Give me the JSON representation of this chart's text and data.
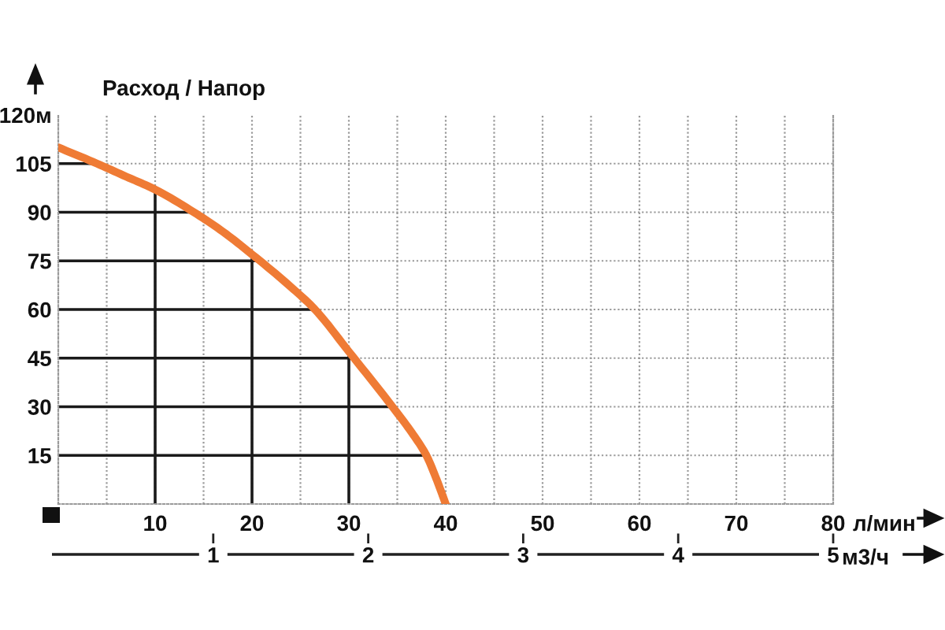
{
  "chart_data": {
    "type": "line",
    "title": "Расход / Напор",
    "xlabel": "л/мин",
    "x2label": "м3/ч",
    "x": [
      0,
      4,
      7,
      10,
      14,
      17,
      20,
      24,
      26.5,
      30,
      34.5,
      36.5,
      38,
      39,
      40
    ],
    "values": [
      110,
      105,
      101,
      97,
      90,
      84,
      77,
      67,
      60,
      47,
      30,
      22,
      15,
      8,
      0
    ],
    "color": "#ef7b35",
    "xlim": [
      0,
      80
    ],
    "xticks": [
      {
        "value": 5,
        "label": null
      },
      10,
      {
        "value": 15,
        "label": null
      },
      20,
      {
        "value": 25,
        "label": null
      },
      30,
      {
        "value": 35,
        "label": null
      },
      40,
      {
        "value": 45,
        "label": null
      },
      50,
      {
        "value": 55,
        "label": null
      },
      60,
      {
        "value": 65,
        "label": null
      },
      70,
      {
        "value": 75,
        "label": null
      },
      80
    ],
    "ylim": [
      0,
      120
    ],
    "yticks": [
      15,
      30,
      45,
      60,
      75,
      90,
      105,
      {
        "value": 120,
        "label": "120м"
      }
    ],
    "x2lim": [
      0,
      5
    ],
    "x2ticks": [
      1,
      2,
      3,
      4,
      5
    ],
    "grid": true,
    "marker": "none",
    "line_style": "solid"
  }
}
